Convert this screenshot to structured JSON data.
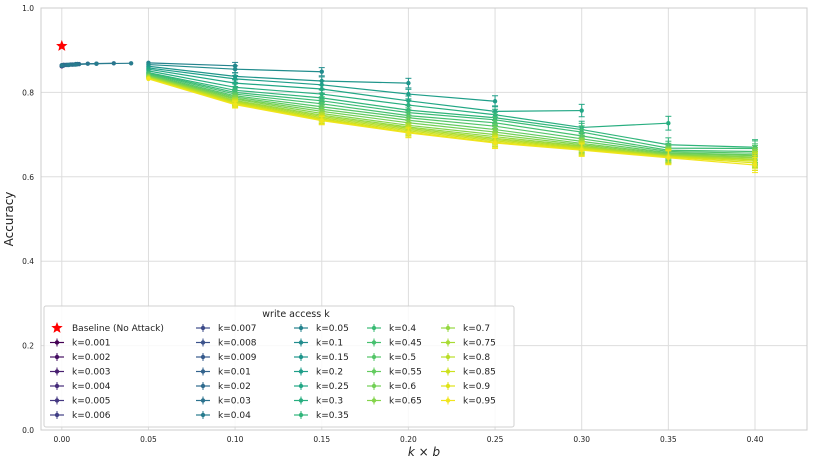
{
  "chart_data": {
    "type": "line",
    "xlabel": "k × b",
    "ylabel": "Accuracy",
    "xlim": [
      -0.012,
      0.43
    ],
    "ylim": [
      0.0,
      1.0
    ],
    "x_ticks": [
      "0.00",
      "0.05",
      "0.10",
      "0.15",
      "0.20",
      "0.25",
      "0.30",
      "0.35",
      "0.40"
    ],
    "y_ticks": [
      "0.0",
      "0.2",
      "0.4",
      "0.6",
      "0.8",
      "1.0"
    ],
    "grid": true,
    "legend_title": "write access k",
    "legend_placement": "lower-left",
    "baseline": {
      "name": "Baseline (No Attack)",
      "x": 0.0,
      "y": 0.91,
      "color": "#ff0000",
      "marker": "star"
    },
    "series": [
      {
        "name": "k=0.001",
        "color": "#440154",
        "x": [
          0.0
        ],
        "y": [
          0.862
        ]
      },
      {
        "name": "k=0.002",
        "color": "#471164",
        "x": [
          0.0
        ],
        "y": [
          0.862
        ]
      },
      {
        "name": "k=0.003",
        "color": "#481f70",
        "x": [
          0.0
        ],
        "y": [
          0.863
        ]
      },
      {
        "name": "k=0.004",
        "color": "#472d7b",
        "x": [
          0.0
        ],
        "y": [
          0.863
        ]
      },
      {
        "name": "k=0.005",
        "color": "#453882",
        "x": [
          0.0
        ],
        "y": [
          0.863
        ]
      },
      {
        "name": "k=0.006",
        "color": "#424086",
        "x": [
          0.0,
          0.0
        ],
        "y": [
          0.863,
          0.864
        ]
      },
      {
        "name": "k=0.007",
        "color": "#3e4c8a",
        "x": [
          0.0,
          0.001
        ],
        "y": [
          0.863,
          0.864
        ]
      },
      {
        "name": "k=0.008",
        "color": "#3b528b",
        "x": [
          0.0,
          0.001
        ],
        "y": [
          0.863,
          0.864
        ]
      },
      {
        "name": "k=0.009",
        "color": "#375b8d",
        "x": [
          0.0,
          0.001
        ],
        "y": [
          0.864,
          0.865
        ]
      },
      {
        "name": "k=0.01",
        "color": "#33638d",
        "x": [
          0.0,
          0.001
        ],
        "y": [
          0.864,
          0.865
        ]
      },
      {
        "name": "k=0.02",
        "color": "#2f6b8e",
        "x": [
          0.0,
          0.001,
          0.002,
          0.003,
          0.004,
          0.005,
          0.006,
          0.007,
          0.008,
          0.009,
          0.01,
          0.02
        ],
        "y": [
          0.864,
          0.864,
          0.865,
          0.865,
          0.865,
          0.866,
          0.866,
          0.866,
          0.867,
          0.867,
          0.867,
          0.868
        ]
      },
      {
        "name": "k=0.03",
        "color": "#2c728e",
        "x": [
          0.0,
          0.003,
          0.006,
          0.009,
          0.015,
          0.03
        ],
        "y": [
          0.864,
          0.865,
          0.866,
          0.867,
          0.868,
          0.869
        ]
      },
      {
        "name": "k=0.04",
        "color": "#287c8e",
        "x": [
          0.0,
          0.004,
          0.008,
          0.02,
          0.04
        ],
        "y": [
          0.864,
          0.865,
          0.866,
          0.868,
          0.869
        ]
      },
      {
        "name": "k=0.05",
        "color": "#25838e",
        "x": [
          0.05,
          0.1
        ],
        "y": [
          0.87,
          0.863
        ]
      },
      {
        "name": "k=0.1",
        "color": "#228c8d",
        "x": [
          0.05,
          0.1,
          0.15
        ],
        "y": [
          0.866,
          0.855,
          0.849
        ]
      },
      {
        "name": "k=0.15",
        "color": "#1f958b",
        "x": [
          0.05,
          0.1,
          0.15,
          0.2
        ],
        "y": [
          0.862,
          0.838,
          0.827,
          0.822
        ]
      },
      {
        "name": "k=0.2",
        "color": "#1f9e89",
        "x": [
          0.05,
          0.1,
          0.15,
          0.2,
          0.25
        ],
        "y": [
          0.858,
          0.832,
          0.818,
          0.796,
          0.779
        ]
      },
      {
        "name": "k=0.25",
        "color": "#22a785",
        "x": [
          0.05,
          0.1,
          0.15,
          0.2,
          0.25,
          0.3
        ],
        "y": [
          0.855,
          0.822,
          0.808,
          0.78,
          0.755,
          0.757
        ]
      },
      {
        "name": "k=0.3",
        "color": "#28ae80",
        "x": [
          0.05,
          0.1,
          0.15,
          0.2,
          0.25,
          0.3,
          0.35
        ],
        "y": [
          0.851,
          0.812,
          0.796,
          0.77,
          0.747,
          0.717,
          0.727
        ]
      },
      {
        "name": "k=0.35",
        "color": "#31b57b",
        "x": [
          0.05,
          0.1,
          0.15,
          0.2,
          0.25,
          0.3,
          0.35,
          0.4
        ],
        "y": [
          0.847,
          0.805,
          0.787,
          0.758,
          0.74,
          0.712,
          0.676,
          0.67
        ]
      },
      {
        "name": "k=0.4",
        "color": "#3bbb75",
        "x": [
          0.05,
          0.1,
          0.15,
          0.2,
          0.25,
          0.3,
          0.35,
          0.4
        ],
        "y": [
          0.846,
          0.8,
          0.78,
          0.752,
          0.735,
          0.706,
          0.668,
          0.667
        ]
      },
      {
        "name": "k=0.45",
        "color": "#46c06f",
        "x": [
          0.05,
          0.1,
          0.15,
          0.2,
          0.25,
          0.3,
          0.35,
          0.4
        ],
        "y": [
          0.844,
          0.796,
          0.773,
          0.745,
          0.728,
          0.697,
          0.663,
          0.66
        ]
      },
      {
        "name": "k=0.5",
        "color": "#54c568",
        "x": [
          0.05,
          0.1,
          0.15,
          0.2,
          0.25,
          0.3,
          0.35,
          0.4
        ],
        "y": [
          0.842,
          0.792,
          0.766,
          0.74,
          0.72,
          0.69,
          0.66,
          0.656
        ]
      },
      {
        "name": "k=0.55",
        "color": "#63cb5f",
        "x": [
          0.05,
          0.1,
          0.15,
          0.2,
          0.25,
          0.3,
          0.35,
          0.4
        ],
        "y": [
          0.84,
          0.789,
          0.76,
          0.734,
          0.712,
          0.684,
          0.657,
          0.652
        ]
      },
      {
        "name": "k=0.6",
        "color": "#73d056",
        "x": [
          0.05,
          0.1,
          0.15,
          0.2,
          0.25,
          0.3,
          0.35,
          0.4
        ],
        "y": [
          0.839,
          0.786,
          0.755,
          0.728,
          0.706,
          0.679,
          0.655,
          0.65
        ]
      },
      {
        "name": "k=0.65",
        "color": "#84d44b",
        "x": [
          0.05,
          0.1,
          0.15,
          0.2,
          0.25,
          0.3,
          0.35,
          0.4
        ],
        "y": [
          0.838,
          0.784,
          0.75,
          0.722,
          0.7,
          0.676,
          0.653,
          0.647
        ]
      },
      {
        "name": "k=0.7",
        "color": "#95d840",
        "x": [
          0.05,
          0.1,
          0.15,
          0.2,
          0.25,
          0.3,
          0.35,
          0.4
        ],
        "y": [
          0.837,
          0.781,
          0.746,
          0.718,
          0.695,
          0.673,
          0.651,
          0.645
        ]
      },
      {
        "name": "k=0.75",
        "color": "#a8db34",
        "x": [
          0.05,
          0.1,
          0.15,
          0.2,
          0.25,
          0.3,
          0.35,
          0.4
        ],
        "y": [
          0.836,
          0.779,
          0.743,
          0.715,
          0.691,
          0.671,
          0.65,
          0.642
        ]
      },
      {
        "name": "k=0.8",
        "color": "#bade28",
        "x": [
          0.05,
          0.1,
          0.15,
          0.2,
          0.25,
          0.3,
          0.35,
          0.4
        ],
        "y": [
          0.835,
          0.777,
          0.74,
          0.712,
          0.688,
          0.669,
          0.649,
          0.64
        ]
      },
      {
        "name": "k=0.85",
        "color": "#cde11d",
        "x": [
          0.05,
          0.1,
          0.15,
          0.2,
          0.25,
          0.3,
          0.35,
          0.4
        ],
        "y": [
          0.834,
          0.775,
          0.737,
          0.709,
          0.685,
          0.667,
          0.648,
          0.637
        ]
      },
      {
        "name": "k=0.9",
        "color": "#dfe318",
        "x": [
          0.05,
          0.1,
          0.15,
          0.2,
          0.25,
          0.3,
          0.35,
          0.4
        ],
        "y": [
          0.833,
          0.773,
          0.735,
          0.706,
          0.682,
          0.665,
          0.647,
          0.633
        ]
      },
      {
        "name": "k=0.95",
        "color": "#f1e51d",
        "x": [
          0.05,
          0.1,
          0.15,
          0.2,
          0.25,
          0.3,
          0.35,
          0.4
        ],
        "y": [
          0.832,
          0.771,
          0.733,
          0.704,
          0.68,
          0.663,
          0.645,
          0.628
        ]
      }
    ]
  }
}
